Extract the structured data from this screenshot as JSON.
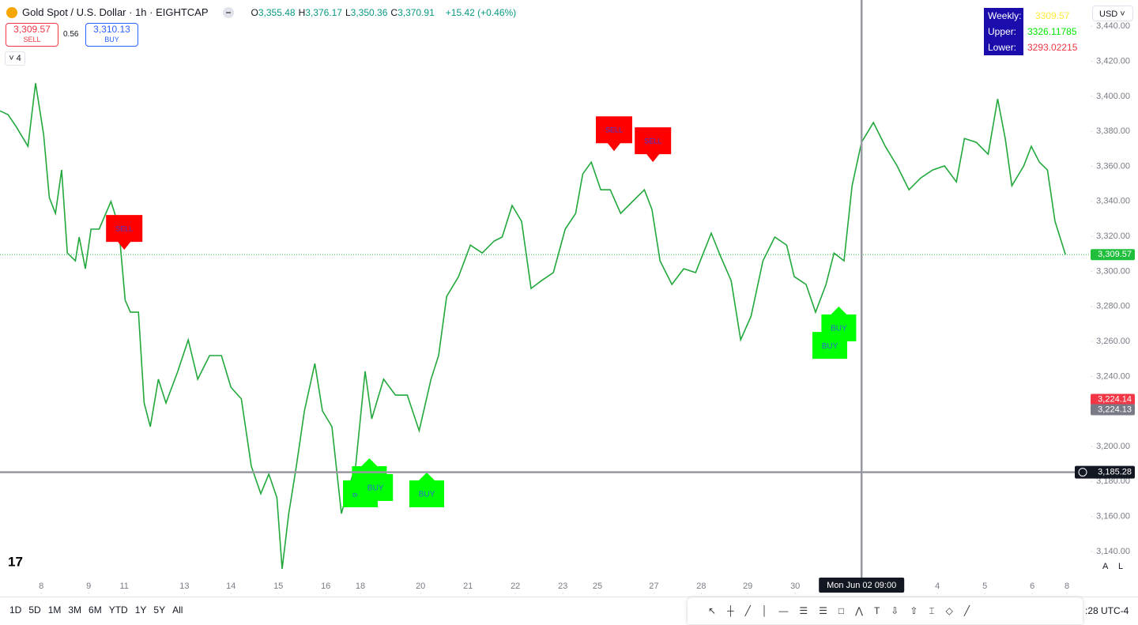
{
  "header": {
    "title": "Gold Spot / U.S. Dollar · 1h · EIGHTCAP",
    "ohlc": [
      {
        "key": "O",
        "value": "3,355.48"
      },
      {
        "key": "H",
        "value": "3,376.17"
      },
      {
        "key": "L",
        "value": "3,350.36"
      },
      {
        "key": "C",
        "value": "3,370.91"
      }
    ],
    "change": "+15.42 (+0.46%)"
  },
  "trade": {
    "sell_price": "3,309.57",
    "sell": "SELL",
    "spread": "0.56",
    "buy_price": "3,310.13",
    "buy": "BUY",
    "indicators": "4"
  },
  "indicator": {
    "rows": [
      [
        "Weekly:",
        "3309.57"
      ],
      [
        "Upper:",
        "3326.11785"
      ],
      [
        "Lower:",
        "3293.02215"
      ]
    ]
  },
  "currency": "USD",
  "chart_data": {
    "type": "line",
    "color": "#22a83c",
    "x": [
      -0.87,
      -0.7,
      -0.53,
      -0.28,
      -0.12,
      0.05,
      0.17,
      0.3,
      0.43,
      0.55,
      0.72,
      0.8,
      0.93,
      1.05,
      1.22,
      1.47,
      1.63,
      1.77,
      1.88,
      2.05,
      2.17,
      2.3,
      2.47,
      2.63,
      2.88,
      3.1,
      3.3,
      3.55,
      3.8,
      4.0,
      4.22,
      4.43,
      4.63,
      4.8,
      4.97,
      5.08,
      5.22,
      5.38,
      5.55,
      5.77,
      5.93,
      6.13,
      6.33,
      6.47,
      6.63,
      6.83,
      6.97,
      7.22,
      7.47,
      7.72,
      7.97,
      8.22,
      8.38,
      8.55,
      8.8,
      9.05,
      9.3,
      9.55,
      9.72,
      9.93,
      10.13,
      10.33,
      10.55,
      10.8,
      11.05,
      11.27,
      11.42,
      11.6,
      11.8,
      12.0,
      12.22,
      12.47,
      12.72,
      12.88,
      13.05,
      13.3,
      13.55,
      13.8,
      14.13,
      14.33,
      14.55,
      14.75,
      14.97,
      15.22,
      15.47,
      15.72,
      15.88,
      16.13,
      16.33,
      16.55,
      16.72,
      16.93,
      17.1,
      17.3,
      17.55,
      17.8,
      18.05,
      18.3,
      18.55,
      18.8,
      19.05,
      19.3,
      19.47,
      19.72,
      19.97,
      20.17,
      20.33,
      20.47,
      20.72,
      20.88,
      21.05,
      21.22,
      21.38,
      21.6
    ],
    "values": [
      3391.7,
      3389.5,
      3382.7,
      3371.4,
      3407.5,
      3378.2,
      3342.1,
      3333.1,
      3357.9,
      3310.5,
      3306.0,
      3319.6,
      3301.5,
      3324.1,
      3324.1,
      3339.9,
      3326.3,
      3283.5,
      3276.7,
      3276.7,
      3224.8,
      3211.3,
      3238.4,
      3224.8,
      3242.9,
      3260.9,
      3238.4,
      3251.9,
      3251.9,
      3233.8,
      3227.1,
      3188.7,
      3173.0,
      3184.2,
      3170.7,
      3130.1,
      3161.7,
      3188.7,
      3220.3,
      3247.4,
      3220.3,
      3211.3,
      3161.7,
      3175.2,
      3188.7,
      3242.9,
      3215.8,
      3238.4,
      3229.3,
      3229.3,
      3209.0,
      3238.4,
      3251.9,
      3285.7,
      3297.0,
      3315.0,
      3310.5,
      3317.3,
      3319.6,
      3337.6,
      3328.6,
      3290.2,
      3294.7,
      3299.3,
      3324.1,
      3333.1,
      3355.6,
      3362.4,
      3346.6,
      3346.6,
      3333.1,
      3339.9,
      3346.6,
      3335.3,
      3306.0,
      3292.5,
      3301.5,
      3299.3,
      3321.8,
      3308.3,
      3294.7,
      3260.9,
      3274.4,
      3306.0,
      3319.6,
      3315.0,
      3297.0,
      3292.5,
      3276.7,
      3292.5,
      3310.5,
      3306.0,
      3348.9,
      3373.7,
      3385.0,
      3371.4,
      3360.2,
      3346.6,
      3353.4,
      3357.9,
      3360.2,
      3351.1,
      3375.9,
      3373.7,
      3366.9,
      3398.5,
      3375.9,
      3348.9,
      3360.2,
      3371.4,
      3362.4,
      3357.9,
      3328.6,
      3309.57
    ],
    "xlim": [
      -0.87,
      22.13
    ],
    "ylim": [
      3116.5,
      3455
    ],
    "xticks": [
      {
        "value": 0,
        "label": "8"
      },
      {
        "value": 1,
        "label": "9"
      },
      {
        "value": 1.75,
        "label": "11"
      },
      {
        "value": 3.02,
        "label": "13"
      },
      {
        "value": 4,
        "label": "14"
      },
      {
        "value": 5,
        "label": "15"
      },
      {
        "value": 6,
        "label": "16"
      },
      {
        "value": 6.73,
        "label": "18"
      },
      {
        "value": 8,
        "label": "20"
      },
      {
        "value": 9,
        "label": "21"
      },
      {
        "value": 10,
        "label": "22"
      },
      {
        "value": 11,
        "label": "23"
      },
      {
        "value": 11.73,
        "label": "25"
      },
      {
        "value": 12.92,
        "label": "27"
      },
      {
        "value": 13.92,
        "label": "28"
      },
      {
        "value": 14.9,
        "label": "29"
      },
      {
        "value": 15.9,
        "label": "30"
      },
      {
        "value": 18.9,
        "label": "4"
      },
      {
        "value": 19.9,
        "label": "5"
      },
      {
        "value": 20.9,
        "label": "6"
      },
      {
        "value": 21.63,
        "label": "8"
      }
    ],
    "yticks": [
      {
        "value": 3140,
        "label": "3,140.00"
      },
      {
        "value": 3160,
        "label": "3,160.00"
      },
      {
        "value": 3180,
        "label": "3,180.00"
      },
      {
        "value": 3200,
        "label": "3,200.00"
      },
      {
        "value": 3220,
        "label": "3,220.00"
      },
      {
        "value": 3240,
        "label": "3,240.00"
      },
      {
        "value": 3260,
        "label": "3,260.00"
      },
      {
        "value": 3280,
        "label": "3,280.00"
      },
      {
        "value": 3300,
        "label": "3,300.00"
      },
      {
        "value": 3320,
        "label": "3,320.00"
      },
      {
        "value": 3340,
        "label": "3,340.00"
      },
      {
        "value": 3360,
        "label": "3,360.00"
      },
      {
        "value": 3380,
        "label": "3,380.00"
      },
      {
        "value": 3400,
        "label": "3,400.00"
      },
      {
        "value": 3420,
        "label": "3,420.00"
      },
      {
        "value": 3440,
        "label": "3,440.00"
      }
    ],
    "price_lines": [
      {
        "value": 3309.57,
        "label": "3,309.57",
        "color": "#1fbf3b",
        "line": true
      },
      {
        "value": 3224.14,
        "label": "3,224.14",
        "color": "#f23645",
        "line": false
      },
      {
        "value": 3224.13,
        "label": "3,224.13",
        "color": "#787b86",
        "line": false
      }
    ],
    "crosshair": {
      "x": 17.3,
      "x_label": "Mon Jun 02   09:00",
      "y": 3185.28,
      "y_label": "3,185.28"
    },
    "signals": [
      {
        "label": "SELL",
        "x": 1.75,
        "y": 3312.3
      },
      {
        "label": "SELL",
        "x": 12.08,
        "y": 3368.7
      },
      {
        "label": "SELL",
        "x": 12.9,
        "y": 3362.4
      },
      {
        "label": "BUY",
        "x": 6.73,
        "y": 3185.1
      },
      {
        "label": "BUY",
        "x": 6.92,
        "y": 3193.2
      },
      {
        "label": "BUY",
        "x": 7.05,
        "y": 3188.7
      },
      {
        "label": "BUY",
        "x": 8.13,
        "y": 3185.1
      },
      {
        "label": "BUY",
        "x": 16.63,
        "y": 3269.9
      },
      {
        "label": "BUY",
        "x": 16.82,
        "y": 3279.9
      }
    ]
  },
  "toolbar": {
    "ranges": [
      "1D",
      "5D",
      "1M",
      "3M",
      "6M",
      "YTD",
      "1Y",
      "5Y",
      "All"
    ],
    "time": ":28 UTC-4",
    "scale_buttons": [
      "A",
      "L"
    ]
  }
}
